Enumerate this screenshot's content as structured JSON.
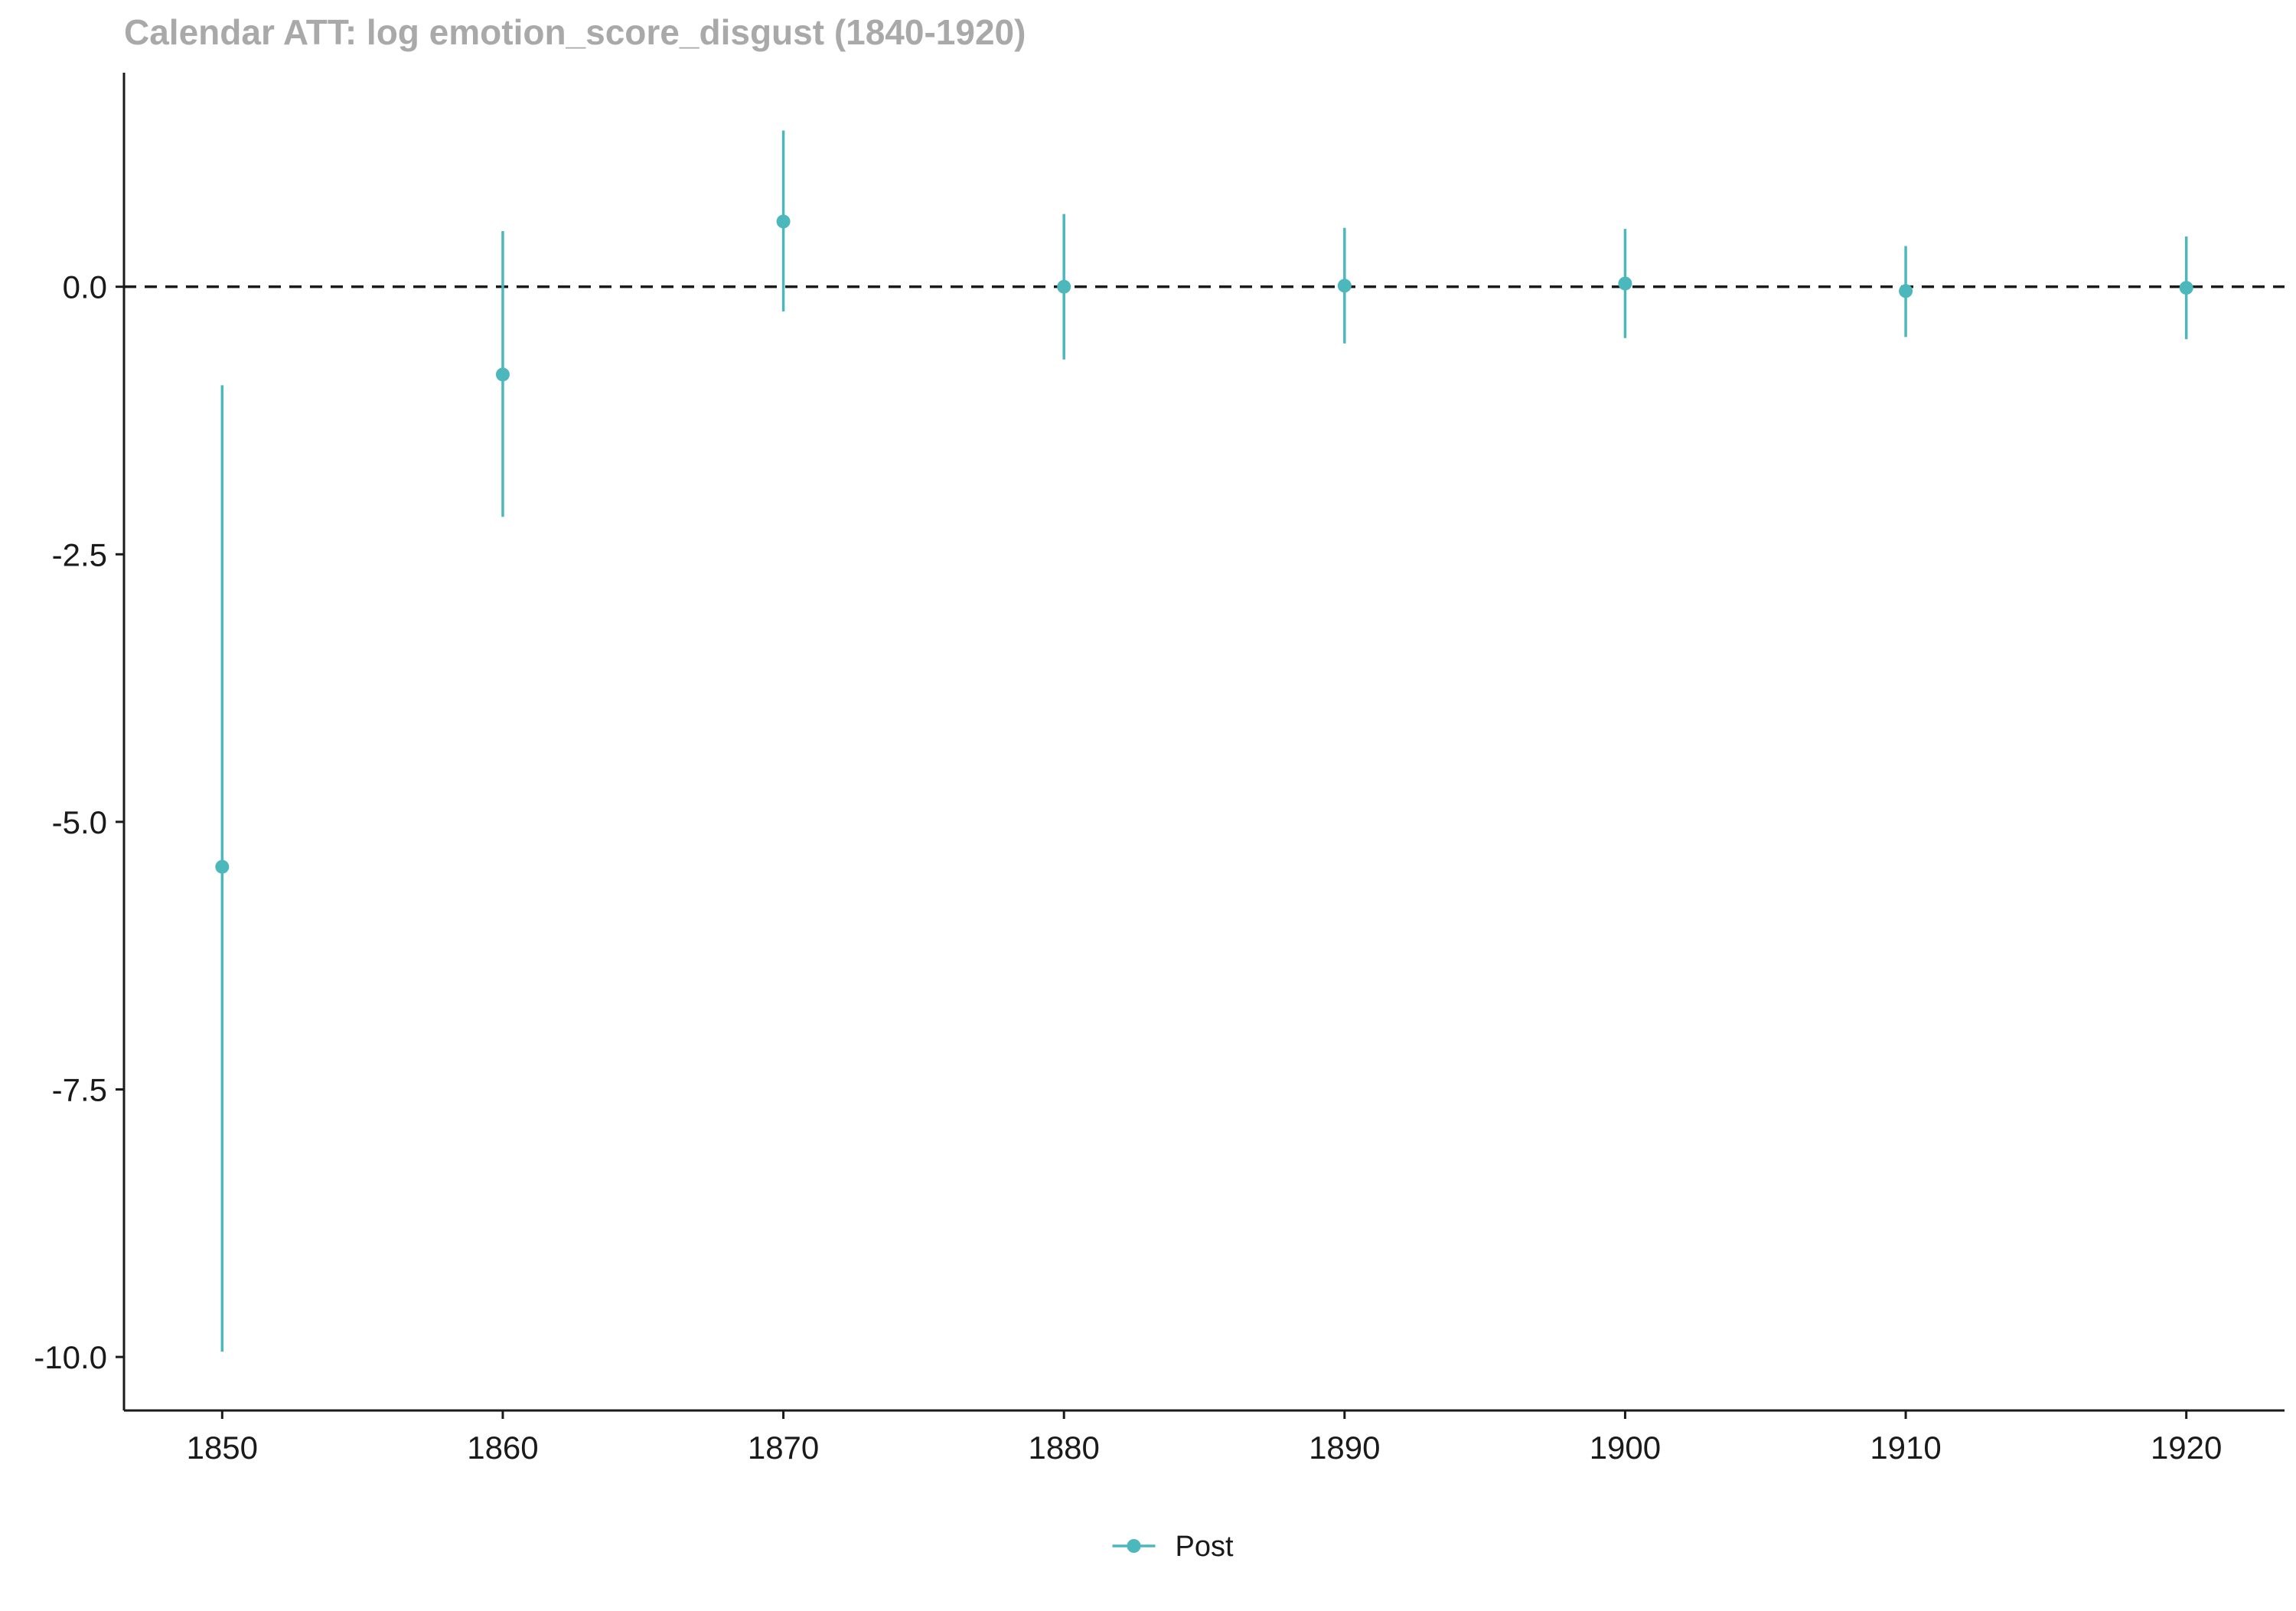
{
  "chart_data": {
    "type": "scatter",
    "title": "Calendar ATT: log emotion_score_disgust (1840-1920)",
    "xlabel": "",
    "ylabel": "",
    "xlim": [
      1846.5,
      1923.5
    ],
    "ylim": [
      -10.5,
      2.0
    ],
    "x_ticks": [
      1850,
      1860,
      1870,
      1880,
      1890,
      1900,
      1910,
      1920
    ],
    "y_ticks": [
      0.0,
      -2.5,
      -5.0,
      -7.5,
      -10.0
    ],
    "y_tick_labels": [
      "0.0",
      "-2.5",
      "-5.0",
      "-7.5",
      "-10.0"
    ],
    "reference_line": {
      "y": 0.0,
      "style": "dashed"
    },
    "grid": false,
    "legend_position": "bottom",
    "series": [
      {
        "name": "Post",
        "color": "#4DB8BC",
        "points": [
          {
            "x": 1850,
            "y": -5.42,
            "ci_low": -9.95,
            "ci_high": -0.92
          },
          {
            "x": 1860,
            "y": -0.82,
            "ci_low": -2.15,
            "ci_high": 0.52
          },
          {
            "x": 1870,
            "y": 0.61,
            "ci_low": -0.23,
            "ci_high": 1.46
          },
          {
            "x": 1880,
            "y": 0.0,
            "ci_low": -0.68,
            "ci_high": 0.68
          },
          {
            "x": 1890,
            "y": 0.01,
            "ci_low": -0.53,
            "ci_high": 0.55
          },
          {
            "x": 1900,
            "y": 0.03,
            "ci_low": -0.48,
            "ci_high": 0.54
          },
          {
            "x": 1910,
            "y": -0.04,
            "ci_low": -0.47,
            "ci_high": 0.38
          },
          {
            "x": 1920,
            "y": -0.01,
            "ci_low": -0.49,
            "ci_high": 0.47
          }
        ]
      }
    ]
  },
  "colors": {
    "title": "#A9A9A9",
    "axis": "#1a1a1a",
    "reference_line": "#1a1a1a"
  }
}
